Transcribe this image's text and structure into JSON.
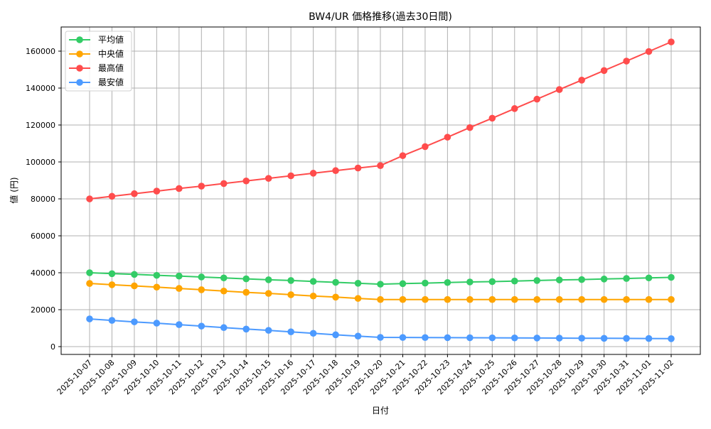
{
  "chart_data": {
    "type": "line",
    "title": "BW4/UR 価格推移(過去30日間)",
    "xlabel": "日付",
    "ylabel": "値 (円)",
    "ylim": [
      -4400,
      173000
    ],
    "yticks": [
      0,
      20000,
      40000,
      60000,
      80000,
      100000,
      120000,
      140000,
      160000
    ],
    "grid": true,
    "legend_position": "upper left",
    "categories": [
      "2025-10-07",
      "2025-10-08",
      "2025-10-09",
      "2025-10-10",
      "2025-10-11",
      "2025-10-12",
      "2025-10-13",
      "2025-10-14",
      "2025-10-15",
      "2025-10-16",
      "2025-10-17",
      "2025-10-18",
      "2025-10-19",
      "2025-10-20",
      "2025-10-21",
      "2025-10-22",
      "2025-10-23",
      "2025-10-24",
      "2025-10-25",
      "2025-10-26",
      "2025-10-27",
      "2025-10-28",
      "2025-10-29",
      "2025-10-30",
      "2025-10-31",
      "2025-11-01",
      "2025-11-02"
    ],
    "series": [
      {
        "name": "平均値",
        "color": "#33cc66",
        "values": [
          40000,
          39500,
          39100,
          38600,
          38200,
          37700,
          37200,
          36700,
          36200,
          35800,
          35300,
          34800,
          34300,
          33800,
          34100,
          34400,
          34700,
          35000,
          35200,
          35500,
          35800,
          36100,
          36300,
          36600,
          36900,
          37200,
          37500
        ]
      },
      {
        "name": "中央値",
        "color": "#ffa500",
        "values": [
          34200,
          33500,
          32900,
          32200,
          31500,
          30800,
          30100,
          29400,
          28800,
          28100,
          27400,
          26800,
          26100,
          25500,
          25500,
          25500,
          25500,
          25500,
          25500,
          25500,
          25500,
          25500,
          25500,
          25500,
          25500,
          25500,
          25500
        ]
      },
      {
        "name": "最高値",
        "color": "#ff4c4c",
        "values": [
          80000,
          81400,
          82800,
          84200,
          85600,
          86900,
          88300,
          89700,
          91100,
          92500,
          93900,
          95300,
          96700,
          98000,
          103400,
          108300,
          113400,
          118600,
          123700,
          128900,
          134000,
          139200,
          144300,
          149500,
          154600,
          159800,
          165000
        ]
      },
      {
        "name": "最安値",
        "color": "#4c9aff",
        "values": [
          15000,
          14200,
          13400,
          12700,
          11900,
          11100,
          10300,
          9500,
          8800,
          8000,
          7200,
          6400,
          5700,
          5000,
          4950,
          4900,
          4850,
          4800,
          4750,
          4700,
          4650,
          4600,
          4550,
          4500,
          4450,
          4400,
          4300
        ]
      }
    ]
  }
}
